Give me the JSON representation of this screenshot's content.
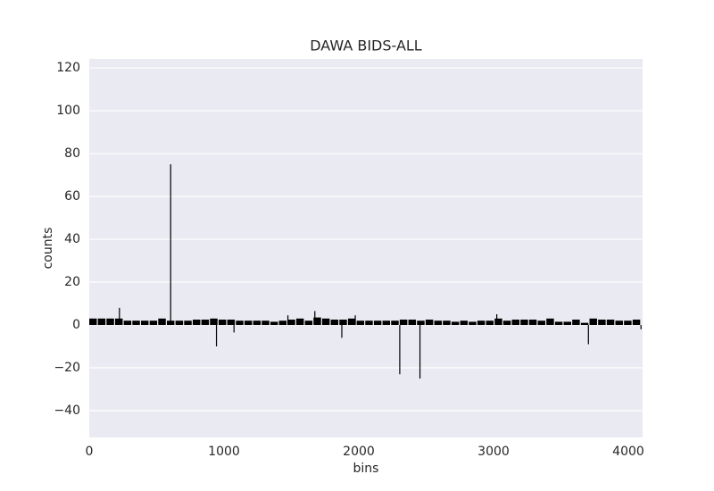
{
  "chart_data": {
    "type": "bar",
    "title": "DAWA BIDS-ALL",
    "xlabel": "bins",
    "ylabel": "counts",
    "xlim": [
      0,
      4106
    ],
    "ylim": [
      -52.5,
      124.2
    ],
    "xticks": [
      0,
      1000,
      2000,
      3000,
      4000
    ],
    "yticks": [
      {
        "value": -40,
        "label": "−40"
      },
      {
        "value": -20,
        "label": "−20"
      },
      0,
      20,
      40,
      60,
      80,
      100,
      120
    ],
    "grid": true,
    "background": "#eaeaf2",
    "color": "#000000",
    "series": [
      {
        "width": 56,
        "x": [
          0,
          64,
          128,
          192,
          256,
          320,
          384,
          448,
          512,
          576,
          640,
          704,
          768,
          832,
          896,
          960,
          1024,
          1088,
          1152,
          1216,
          1280,
          1344,
          1408,
          1472,
          1536,
          1600,
          1664,
          1728,
          1792,
          1856,
          1920,
          1984,
          2048,
          2112,
          2176,
          2240,
          2304,
          2368,
          2432,
          2496,
          2560,
          2624,
          2688,
          2752,
          2816,
          2880,
          2944,
          3008,
          3072,
          3136,
          3200,
          3264,
          3328,
          3392,
          3456,
          3520,
          3584,
          3648,
          3712,
          3776,
          3840,
          3904,
          3968,
          4032
        ],
        "values": [
          3,
          3,
          3,
          3,
          2,
          2,
          2,
          2,
          3,
          2,
          2,
          2,
          2.5,
          2.5,
          3,
          2.5,
          2.5,
          2,
          2,
          2,
          2,
          1.5,
          2,
          2.5,
          3,
          2,
          3.5,
          3,
          2.5,
          2.5,
          3,
          2,
          2,
          2,
          2,
          2,
          2.5,
          2.5,
          2,
          2.5,
          2,
          2,
          1.5,
          2,
          1.5,
          2,
          2,
          3,
          2,
          2.5,
          2.5,
          2.5,
          2,
          3,
          1.5,
          1.5,
          2.5,
          1,
          3,
          2.5,
          2.5,
          2,
          2,
          2.5
        ]
      },
      {
        "width": 8,
        "x": [
          220,
          600,
          940,
          1070,
          1470,
          1670,
          1870,
          1970,
          2300,
          2450,
          3020,
          3700,
          4090
        ],
        "values": [
          8,
          75,
          -10,
          -3.5,
          4.5,
          6.5,
          -6,
          4.5,
          -23,
          -25,
          5,
          -9,
          -2
        ]
      }
    ]
  }
}
